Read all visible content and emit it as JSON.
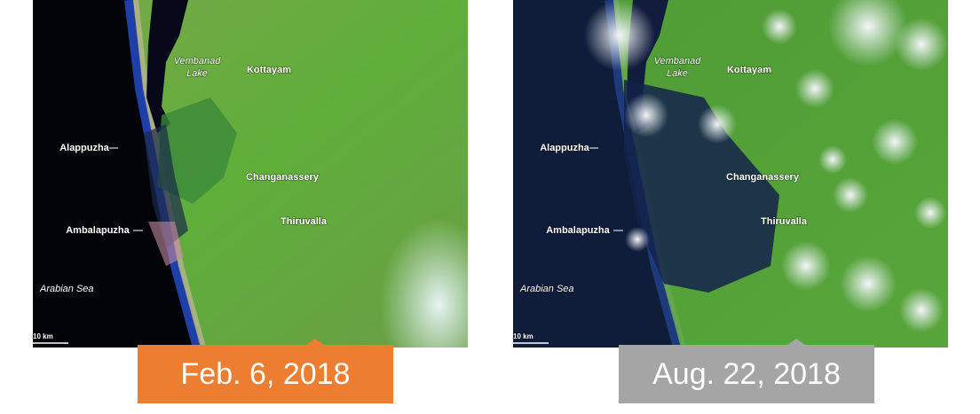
{
  "panels": [
    {
      "date": "Feb. 6, 2018",
      "labels": [
        "Vembanad",
        "Lake",
        "Kottayam",
        "Alappuzha",
        "Changanassery",
        "Thiruvalla",
        "Ambalapuzha",
        "Arabian Sea",
        "10 km"
      ]
    },
    {
      "date": "Aug. 22, 2018",
      "labels": [
        "Vembanad",
        "Lake",
        "Kottayam",
        "Alappuzha",
        "Changanassery",
        "Thiruvalla",
        "Ambalapuzha",
        "Arabian Sea",
        "10 km"
      ]
    }
  ]
}
